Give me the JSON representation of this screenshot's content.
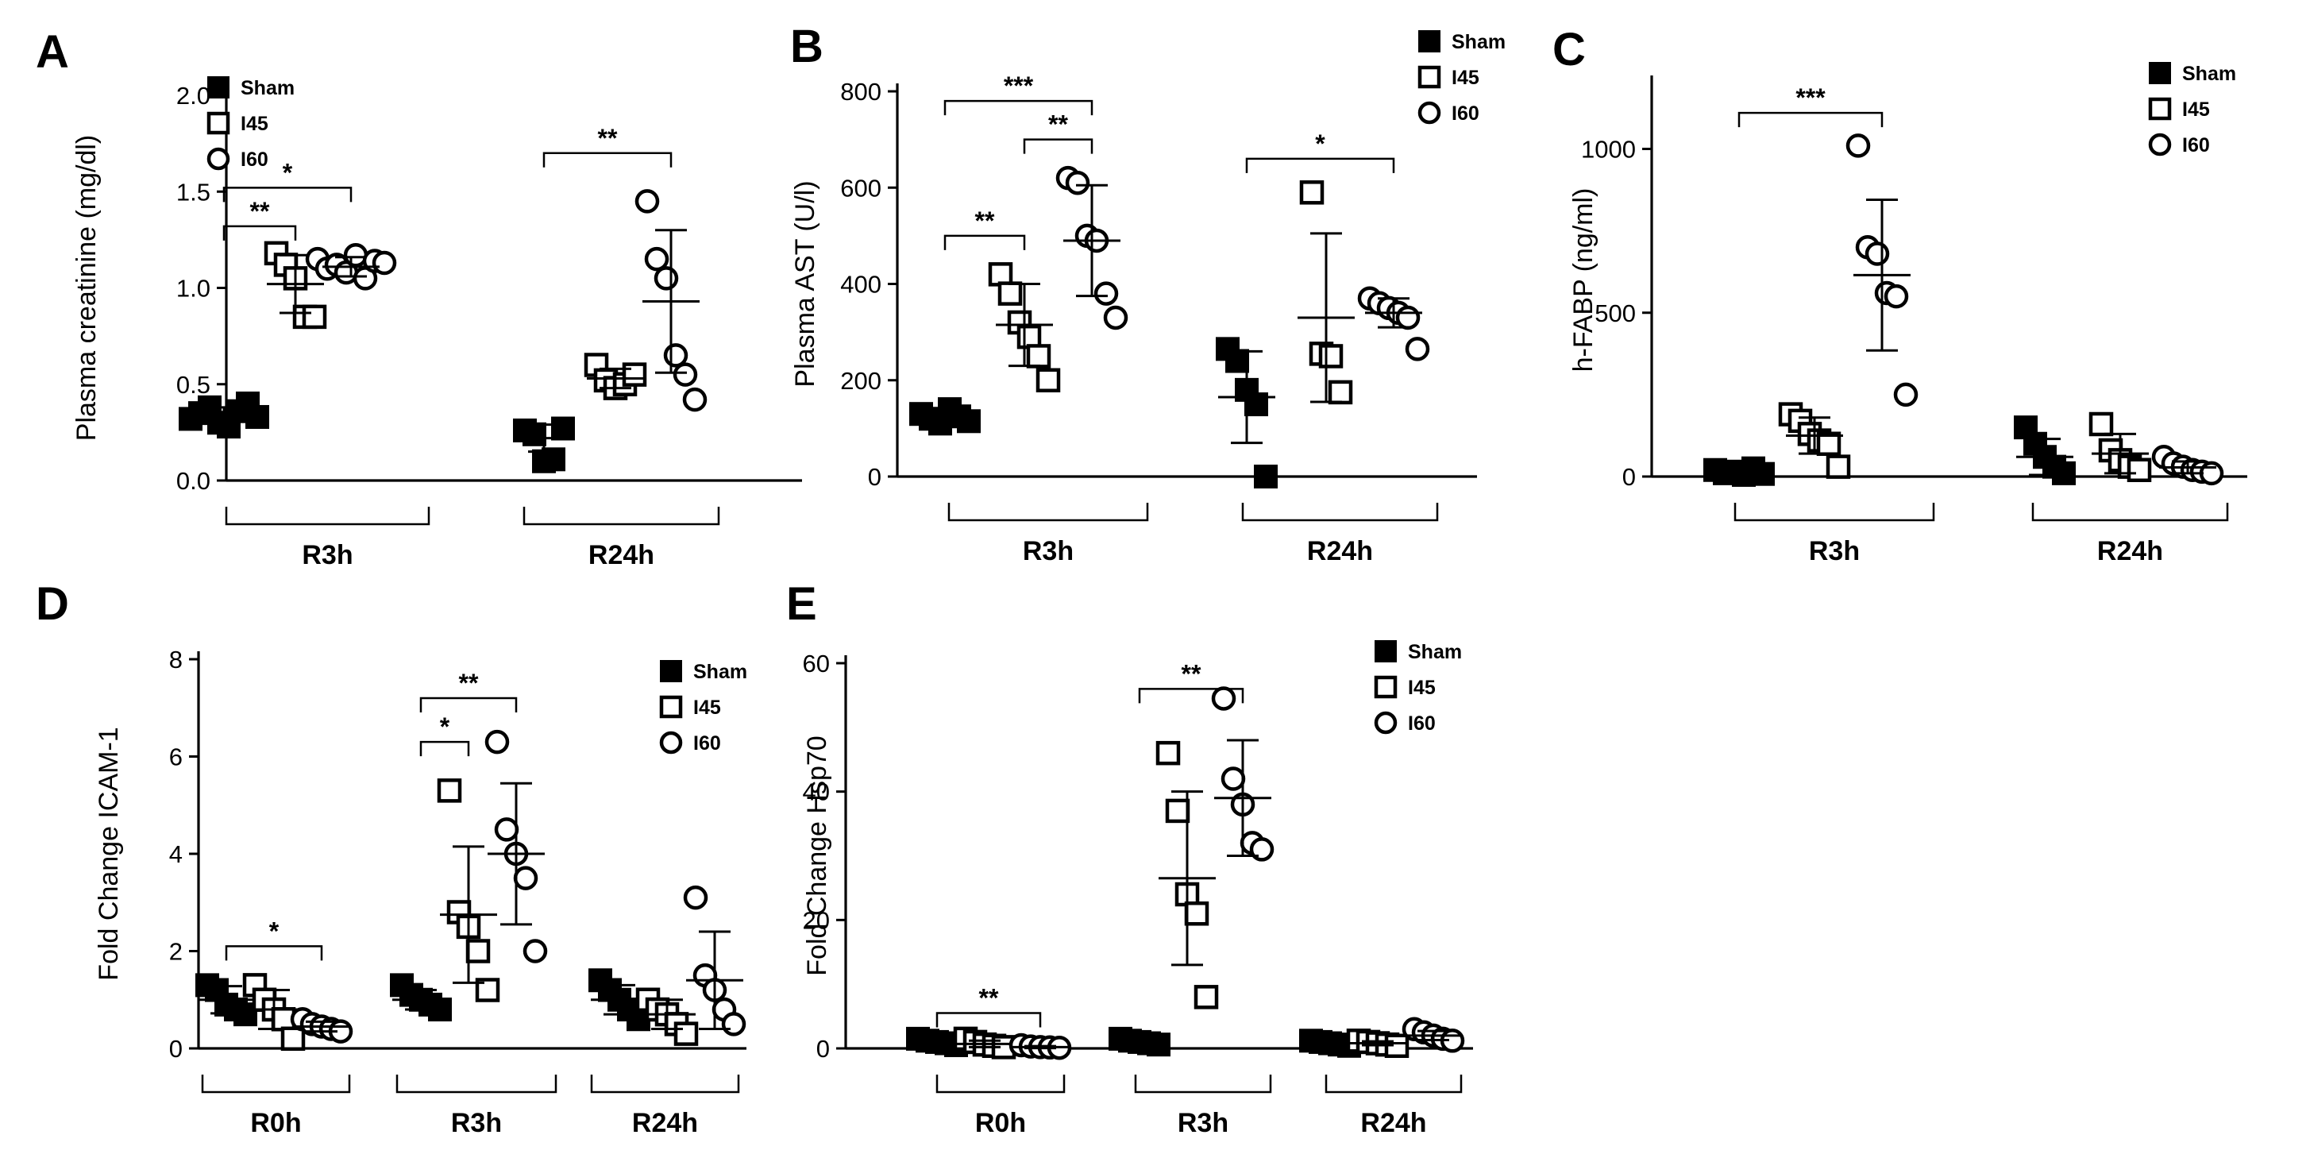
{
  "chart_data": [
    {
      "panel": "A",
      "type": "scatter",
      "ylabel": "Plasma creatinine (mg/dl)",
      "ylim": [
        0,
        2.0
      ],
      "yticks": [
        "0.0",
        "0.5",
        "1.0",
        "1.5",
        "2.0"
      ],
      "legend": [
        "Sham",
        "I45",
        "I60"
      ],
      "groups": [
        "R3h",
        "R24h"
      ],
      "series": [
        {
          "group": "R3h",
          "name": "Sham",
          "points": [
            0.32,
            0.35,
            0.38,
            0.3,
            0.28,
            0.36,
            0.4,
            0.33
          ],
          "mean": 0.34,
          "sd": 0.04
        },
        {
          "group": "R3h",
          "name": "I45",
          "points": [
            1.18,
            1.12,
            1.05,
            0.85,
            0.85
          ],
          "mean": 1.02,
          "sd": 0.15
        },
        {
          "group": "R3h",
          "name": "I60",
          "points": [
            1.15,
            1.1,
            1.12,
            1.08,
            1.17,
            1.05,
            1.14,
            1.13
          ],
          "mean": 1.11,
          "sd": 0.05
        },
        {
          "group": "R24h",
          "name": "Sham",
          "points": [
            0.26,
            0.24,
            0.1,
            0.11,
            0.27
          ],
          "mean": 0.22,
          "sd": 0.07
        },
        {
          "group": "R24h",
          "name": "I45",
          "points": [
            0.6,
            0.52,
            0.48,
            0.5,
            0.55
          ],
          "mean": 0.53,
          "sd": 0.05
        },
        {
          "group": "R24h",
          "name": "I60",
          "points": [
            1.45,
            1.15,
            1.05,
            0.65,
            0.55,
            0.42
          ],
          "mean": 0.93,
          "sd": 0.37
        }
      ],
      "significance": [
        {
          "label": "**",
          "from": [
            0,
            0
          ],
          "to": [
            0,
            1
          ],
          "y": 1.32
        },
        {
          "label": "*",
          "from": [
            0,
            0
          ],
          "to": [
            0,
            2
          ],
          "y": 1.52
        },
        {
          "label": "**",
          "from": [
            1,
            0
          ],
          "to": [
            1,
            2
          ],
          "y": 1.7
        }
      ]
    },
    {
      "panel": "B",
      "type": "scatter",
      "ylabel": "Plasma AST (U/l)",
      "ylim": [
        0,
        800
      ],
      "yticks": [
        "0",
        "200",
        "400",
        "600",
        "800"
      ],
      "legend": [
        "Sham",
        "I45",
        "I60"
      ],
      "groups": [
        "R3h",
        "R24h"
      ],
      "series": [
        {
          "group": "R3h",
          "name": "Sham",
          "points": [
            130,
            120,
            110,
            140,
            125,
            115
          ],
          "mean": 125,
          "sd": 12
        },
        {
          "group": "R3h",
          "name": "I45",
          "points": [
            420,
            380,
            320,
            290,
            250,
            200
          ],
          "mean": 315,
          "sd": 85
        },
        {
          "group": "R3h",
          "name": "I60",
          "points": [
            620,
            610,
            500,
            490,
            380,
            330
          ],
          "mean": 490,
          "sd": 115
        },
        {
          "group": "R24h",
          "name": "Sham",
          "points": [
            265,
            240,
            180,
            150,
            0
          ],
          "mean": 165,
          "sd": 95
        },
        {
          "group": "R24h",
          "name": "I45",
          "points": [
            590,
            255,
            250,
            175
          ],
          "mean": 330,
          "sd": 175
        },
        {
          "group": "R24h",
          "name": "I60",
          "points": [
            370,
            360,
            350,
            340,
            330,
            265
          ],
          "mean": 340,
          "sd": 30
        }
      ],
      "significance": [
        {
          "label": "**",
          "from": [
            0,
            0
          ],
          "to": [
            0,
            1
          ],
          "y": 500
        },
        {
          "label": "**",
          "from": [
            0,
            1
          ],
          "to": [
            0,
            2
          ],
          "y": 700
        },
        {
          "label": "***",
          "from": [
            0,
            0
          ],
          "to": [
            0,
            2
          ],
          "y": 780
        },
        {
          "label": "*",
          "from": [
            1,
            0
          ],
          "to": [
            1,
            2
          ],
          "y": 660
        }
      ]
    },
    {
      "panel": "C",
      "type": "scatter",
      "ylabel": "h-FABP (ng/ml)",
      "ylim": [
        0,
        1200
      ],
      "yticks": [
        "0",
        "500",
        "1000"
      ],
      "legend": [
        "Sham",
        "I45",
        "I60"
      ],
      "groups": [
        "R3h",
        "R24h"
      ],
      "series": [
        {
          "group": "R3h",
          "name": "Sham",
          "points": [
            20,
            10,
            15,
            5,
            25,
            8
          ],
          "mean": 12,
          "sd": 8
        },
        {
          "group": "R3h",
          "name": "I45",
          "points": [
            190,
            170,
            130,
            110,
            100,
            30
          ],
          "mean": 125,
          "sd": 55
        },
        {
          "group": "R3h",
          "name": "I60",
          "points": [
            1010,
            700,
            680,
            560,
            550,
            250
          ],
          "mean": 615,
          "sd": 230
        },
        {
          "group": "R24h",
          "name": "Sham",
          "points": [
            150,
            100,
            60,
            30,
            10
          ],
          "mean": 60,
          "sd": 55
        },
        {
          "group": "R24h",
          "name": "I45",
          "points": [
            160,
            80,
            50,
            30,
            20
          ],
          "mean": 70,
          "sd": 60
        },
        {
          "group": "R24h",
          "name": "I60",
          "points": [
            60,
            40,
            30,
            20,
            15,
            10
          ],
          "mean": 28,
          "sd": 18
        }
      ],
      "significance": [
        {
          "label": "***",
          "from": [
            0,
            0
          ],
          "to": [
            0,
            2
          ],
          "y": 1110
        }
      ]
    },
    {
      "panel": "D",
      "type": "scatter",
      "ylabel": "Fold Change ICAM-1",
      "ylim": [
        0,
        8
      ],
      "yticks": [
        "0",
        "2",
        "4",
        "6",
        "8"
      ],
      "legend": [
        "Sham",
        "I45",
        "I60"
      ],
      "groups": [
        "R0h",
        "R3h",
        "R24h"
      ],
      "series": [
        {
          "group": "R0h",
          "name": "Sham",
          "points": [
            1.3,
            1.2,
            0.9,
            0.8,
            0.7
          ],
          "mean": 1.0,
          "sd": 0.28
        },
        {
          "group": "R0h",
          "name": "I45",
          "points": [
            1.3,
            1.0,
            0.8,
            0.6,
            0.2
          ],
          "mean": 0.8,
          "sd": 0.4
        },
        {
          "group": "R0h",
          "name": "I60",
          "points": [
            0.6,
            0.5,
            0.45,
            0.4,
            0.35
          ],
          "mean": 0.45,
          "sd": 0.1
        },
        {
          "group": "R3h",
          "name": "Sham",
          "points": [
            1.3,
            1.1,
            1.0,
            0.9,
            0.8
          ],
          "mean": 1.0,
          "sd": 0.2
        },
        {
          "group": "R3h",
          "name": "I45",
          "points": [
            5.3,
            2.8,
            2.5,
            2.0,
            1.2
          ],
          "mean": 2.75,
          "sd": 1.4
        },
        {
          "group": "R3h",
          "name": "I60",
          "points": [
            6.3,
            4.5,
            4.0,
            3.5,
            2.0
          ],
          "mean": 4.0,
          "sd": 1.45
        }
      ],
      "series_r24h": [
        {
          "group": "R24h",
          "name": "Sham",
          "points": [
            1.4,
            1.2,
            1.0,
            0.8,
            0.6
          ],
          "mean": 1.0,
          "sd": 0.3
        },
        {
          "group": "R24h",
          "name": "I45",
          "points": [
            1.0,
            0.8,
            0.7,
            0.5,
            0.3
          ],
          "mean": 0.7,
          "sd": 0.3
        },
        {
          "group": "R24h",
          "name": "I60",
          "points": [
            3.1,
            1.5,
            1.2,
            0.8,
            0.5
          ],
          "mean": 1.4,
          "sd": 1.0
        }
      ],
      "significance": [
        {
          "label": "*",
          "from": [
            0,
            0
          ],
          "to": [
            0,
            2
          ],
          "y": 2.1
        },
        {
          "label": "*",
          "from": [
            1,
            0
          ],
          "to": [
            1,
            1
          ],
          "y": 6.3
        },
        {
          "label": "**",
          "from": [
            1,
            0
          ],
          "to": [
            1,
            2
          ],
          "y": 7.2
        }
      ]
    },
    {
      "panel": "E",
      "type": "scatter",
      "ylabel": "Fold Change Hsp70",
      "ylim": [
        0,
        60
      ],
      "yticks": [
        "0",
        "20",
        "40",
        "60"
      ],
      "legend": [
        "Sham",
        "I45",
        "I60"
      ],
      "groups": [
        "R0h",
        "R3h",
        "R24h"
      ],
      "series": [
        {
          "group": "R0h",
          "name": "Sham",
          "points": [
            1.5,
            1.2,
            1.0,
            0.8,
            0.5
          ],
          "mean": 1.0,
          "sd": 0.35
        },
        {
          "group": "R0h",
          "name": "I45",
          "points": [
            1.5,
            1.0,
            0.6,
            0.4,
            0.2
          ],
          "mean": 0.7,
          "sd": 0.5
        },
        {
          "group": "R0h",
          "name": "I60",
          "points": [
            0.5,
            0.3,
            0.2,
            0.15,
            0.1
          ],
          "mean": 0.2,
          "sd": 0.15
        },
        {
          "group": "R3h",
          "name": "Sham",
          "points": [
            1.5,
            1.2,
            1.0,
            0.8,
            0.6
          ],
          "mean": 1.0,
          "sd": 0.3
        },
        {
          "group": "R3h",
          "name": "I45",
          "points": [
            46,
            37,
            24,
            21,
            8
          ],
          "mean": 26.5,
          "sd": 13.5
        },
        {
          "group": "R3h",
          "name": "I60",
          "points": [
            54.5,
            42,
            38,
            32,
            31
          ],
          "mean": 39,
          "sd": 9
        }
      ],
      "series_r24h": [
        {
          "group": "R24h",
          "name": "Sham",
          "points": [
            1.2,
            1.0,
            0.8,
            0.6,
            0.4
          ],
          "mean": 0.8,
          "sd": 0.3
        },
        {
          "group": "R24h",
          "name": "I45",
          "points": [
            1.2,
            1.0,
            0.8,
            0.6,
            0.4
          ],
          "mean": 0.8,
          "sd": 0.3
        },
        {
          "group": "R24h",
          "name": "I60",
          "points": [
            3.0,
            2.5,
            2.0,
            1.5,
            1.2
          ],
          "mean": 2.0,
          "sd": 0.7
        }
      ],
      "significance": [
        {
          "label": "**",
          "from": [
            0,
            0
          ],
          "to": [
            0,
            2
          ],
          "y": 5.5
        },
        {
          "label": "**",
          "from": [
            1,
            0
          ],
          "to": [
            1,
            2
          ],
          "y": 56
        }
      ]
    }
  ]
}
